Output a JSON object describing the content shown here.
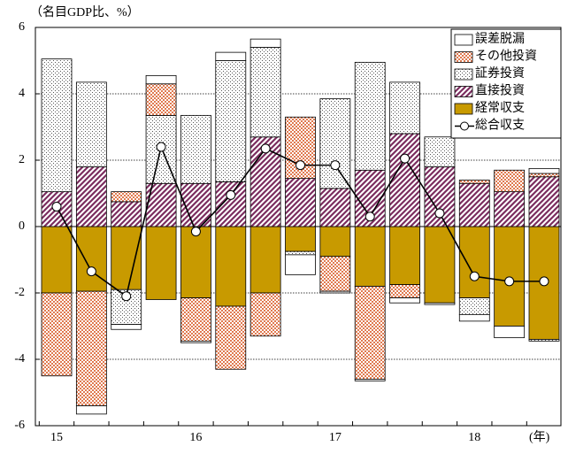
{
  "chart_data": {
    "type": "bar",
    "ylabel": "（名目GDP比、%）",
    "xlabel": "(年)",
    "categories": [
      "15",
      null,
      null,
      null,
      "16",
      null,
      null,
      null,
      "17",
      null,
      null,
      null,
      "18",
      null,
      null
    ],
    "series": [
      {
        "name": "経常収支",
        "color": "#c89a00",
        "values": [
          -2.0,
          -1.95,
          -1.9,
          -2.2,
          -2.15,
          -2.4,
          -2.0,
          -0.75,
          -0.9,
          -1.8,
          -1.75,
          -2.3,
          -2.15,
          -3.0,
          -3.4
        ]
      },
      {
        "name": "直接投資",
        "color": "#7b2d5f",
        "values": [
          1.05,
          1.8,
          0.75,
          1.3,
          1.3,
          1.35,
          2.7,
          1.45,
          1.15,
          1.7,
          2.8,
          1.8,
          1.3,
          1.05,
          1.5
        ]
      },
      {
        "name": "証券投資",
        "color": "#555555",
        "values": [
          4.0,
          2.55,
          -1.05,
          2.05,
          2.05,
          3.65,
          2.7,
          -0.1,
          2.7,
          3.25,
          1.55,
          0.9,
          -0.5,
          0,
          -0.05
        ]
      },
      {
        "name": "その他投資",
        "color": "#e07a50",
        "values": [
          -2.5,
          -3.45,
          0.3,
          0.95,
          -1.3,
          -1.9,
          -1.3,
          1.85,
          -1.05,
          -2.8,
          -0.4,
          0,
          0.1,
          0.65,
          0.1
        ]
      },
      {
        "name": "誤差脱漏",
        "color": "#ffffff",
        "values": [
          0,
          -0.25,
          -0.15,
          0.25,
          -0.05,
          0.25,
          0.25,
          -0.6,
          -0.05,
          -0.05,
          -0.15,
          -0.05,
          -0.2,
          -0.35,
          0.15
        ]
      },
      {
        "name": "総合収支",
        "type": "line",
        "color": "#000000",
        "values": [
          0.6,
          -1.35,
          -2.1,
          2.4,
          -0.15,
          0.95,
          2.35,
          1.85,
          1.85,
          0.3,
          2.05,
          0.4,
          -1.5,
          -1.65,
          -1.65
        ]
      }
    ],
    "ylim": [
      -6,
      6
    ],
    "yticks": [
      -6,
      -4,
      -2,
      0,
      2,
      4,
      6
    ],
    "grid": true,
    "legend": "upper right"
  }
}
